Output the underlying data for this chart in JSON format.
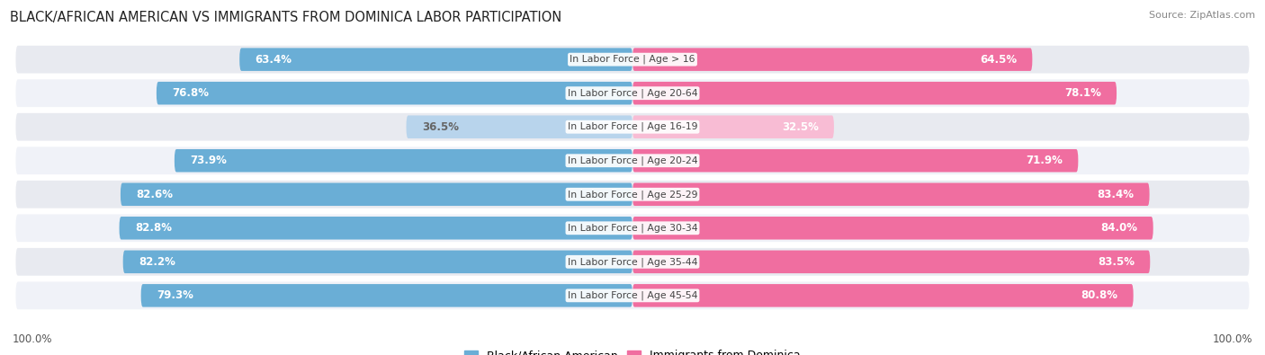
{
  "title": "BLACK/AFRICAN AMERICAN VS IMMIGRANTS FROM DOMINICA LABOR PARTICIPATION",
  "source": "Source: ZipAtlas.com",
  "categories": [
    "In Labor Force | Age > 16",
    "In Labor Force | Age 20-64",
    "In Labor Force | Age 16-19",
    "In Labor Force | Age 20-24",
    "In Labor Force | Age 25-29",
    "In Labor Force | Age 30-34",
    "In Labor Force | Age 35-44",
    "In Labor Force | Age 45-54"
  ],
  "black_values": [
    63.4,
    76.8,
    36.5,
    73.9,
    82.6,
    82.8,
    82.2,
    79.3
  ],
  "immigrant_values": [
    64.5,
    78.1,
    32.5,
    71.9,
    83.4,
    84.0,
    83.5,
    80.8
  ],
  "black_color": "#6aaed6",
  "black_color_light": "#b8d4ec",
  "immigrant_color": "#f06ea0",
  "immigrant_color_light": "#f8bcd4",
  "row_bg_color": "#e8eaf0",
  "row_bg_color2": "#f0f2f8",
  "max_value": 100.0,
  "label_fontsize": 8.5,
  "title_fontsize": 10.5,
  "legend_fontsize": 9,
  "background_color": "#ffffff",
  "bottom_label": "100.0%"
}
